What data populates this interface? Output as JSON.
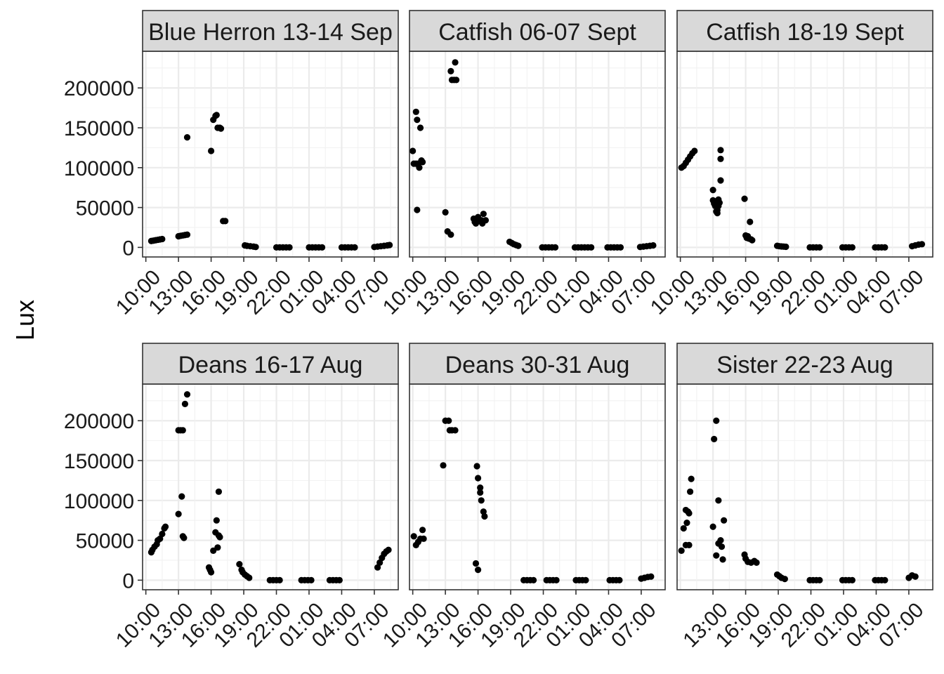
{
  "chart_data": {
    "type": "scatter",
    "ylabel": "Lux",
    "ylim": [
      -12000,
      246000
    ],
    "y_ticks": [
      0,
      50000,
      100000,
      150000,
      200000
    ],
    "y_tick_labels": [
      "0",
      "50000",
      "100000",
      "150000",
      "200000"
    ],
    "x_unit": "hours since 10:00 (day 1)",
    "xlim": [
      -0.3,
      23.2
    ],
    "x_ticks": [
      0,
      3,
      6,
      9,
      12,
      15,
      18,
      21
    ],
    "x_tick_labels": [
      "10:00",
      "13:00",
      "16:00",
      "19:00",
      "22:00",
      "01:00",
      "04:00",
      "07:00"
    ],
    "grid": true,
    "point_color": "#000000",
    "strip_color": "#d9d9d9",
    "panels": [
      {
        "title": "Blue Herron 13-14 Sep",
        "hidden_ticks": [],
        "points": [
          [
            0.5,
            8000
          ],
          [
            0.7,
            8500
          ],
          [
            0.9,
            9000
          ],
          [
            1.1,
            9500
          ],
          [
            1.3,
            10000
          ],
          [
            1.5,
            10500
          ],
          [
            3.0,
            14000
          ],
          [
            3.2,
            14500
          ],
          [
            3.4,
            15000
          ],
          [
            3.6,
            15500
          ],
          [
            3.8,
            16000
          ],
          [
            3.8,
            138000
          ],
          [
            6.0,
            121000
          ],
          [
            6.2,
            160000
          ],
          [
            6.4,
            165000
          ],
          [
            6.5,
            166000
          ],
          [
            6.6,
            150000
          ],
          [
            6.8,
            150000
          ],
          [
            6.9,
            149000
          ],
          [
            7.1,
            33000
          ],
          [
            7.3,
            33000
          ],
          [
            9.1,
            2500
          ],
          [
            9.3,
            2000
          ],
          [
            9.6,
            1500
          ],
          [
            9.9,
            1000
          ],
          [
            10.1,
            500
          ],
          [
            12.0,
            0
          ],
          [
            12.3,
            0
          ],
          [
            12.6,
            0
          ],
          [
            12.9,
            0
          ],
          [
            13.2,
            0
          ],
          [
            15.0,
            0
          ],
          [
            15.3,
            0
          ],
          [
            15.6,
            0
          ],
          [
            15.9,
            0
          ],
          [
            16.2,
            0
          ],
          [
            18.0,
            0
          ],
          [
            18.3,
            0
          ],
          [
            18.6,
            0
          ],
          [
            18.9,
            0
          ],
          [
            19.2,
            0
          ],
          [
            21.0,
            500
          ],
          [
            21.3,
            1000
          ],
          [
            21.6,
            1500
          ],
          [
            21.9,
            2000
          ],
          [
            22.2,
            2500
          ],
          [
            22.4,
            3000
          ]
        ]
      },
      {
        "title": "Catfish 06-07 Sept",
        "hidden_ticks": [],
        "points": [
          [
            0,
            121000
          ],
          [
            0.1,
            105000
          ],
          [
            0.3,
            105000
          ],
          [
            0.3,
            170000
          ],
          [
            0.4,
            160000
          ],
          [
            0.4,
            47000
          ],
          [
            0.5,
            105000
          ],
          [
            0.6,
            100000
          ],
          [
            0.7,
            150000
          ],
          [
            0.8,
            109000
          ],
          [
            0.9,
            107000
          ],
          [
            3.0,
            44000
          ],
          [
            3.2,
            20000
          ],
          [
            3.5,
            16000
          ],
          [
            3.5,
            221000
          ],
          [
            3.6,
            210000
          ],
          [
            3.8,
            210000
          ],
          [
            3.9,
            232000
          ],
          [
            4.0,
            210000
          ],
          [
            5.6,
            36000
          ],
          [
            5.7,
            32000
          ],
          [
            5.8,
            30000
          ],
          [
            6.0,
            38000
          ],
          [
            6.1,
            33000
          ],
          [
            6.3,
            34000
          ],
          [
            6.5,
            42000
          ],
          [
            6.7,
            34000
          ],
          [
            6.4,
            30000
          ],
          [
            8.9,
            7000
          ],
          [
            9.1,
            5500
          ],
          [
            9.3,
            4000
          ],
          [
            9.5,
            3000
          ],
          [
            9.7,
            2000
          ],
          [
            11.9,
            0
          ],
          [
            12.2,
            0
          ],
          [
            12.5,
            0
          ],
          [
            12.8,
            0
          ],
          [
            13.1,
            0
          ],
          [
            14.9,
            0
          ],
          [
            15.2,
            0
          ],
          [
            15.5,
            0
          ],
          [
            15.8,
            0
          ],
          [
            16.1,
            0
          ],
          [
            16.4,
            0
          ],
          [
            17.9,
            0
          ],
          [
            18.2,
            0
          ],
          [
            18.5,
            0
          ],
          [
            18.8,
            0
          ],
          [
            19.1,
            0
          ],
          [
            20.9,
            500
          ],
          [
            21.2,
            1000
          ],
          [
            21.5,
            1500
          ],
          [
            21.8,
            2000
          ],
          [
            22.1,
            2500
          ]
        ]
      },
      {
        "title": "Catfish 18-19 Sept",
        "hidden_ticks": [],
        "points": [
          [
            0.1,
            100000
          ],
          [
            0.3,
            102000
          ],
          [
            0.5,
            106000
          ],
          [
            0.7,
            110000
          ],
          [
            0.9,
            114000
          ],
          [
            1.1,
            118000
          ],
          [
            1.3,
            121000
          ],
          [
            3.0,
            72000
          ],
          [
            3.0,
            59000
          ],
          [
            3.1,
            55000
          ],
          [
            3.2,
            52000
          ],
          [
            3.3,
            45000
          ],
          [
            3.4,
            43000
          ],
          [
            3.4,
            47000
          ],
          [
            3.5,
            52000
          ],
          [
            3.5,
            60000
          ],
          [
            3.6,
            56000
          ],
          [
            3.7,
            122000
          ],
          [
            3.7,
            111000
          ],
          [
            3.7,
            84000
          ],
          [
            5.9,
            61000
          ],
          [
            6.0,
            15000
          ],
          [
            6.1,
            12000
          ],
          [
            6.2,
            14000
          ],
          [
            6.3,
            11000
          ],
          [
            6.5,
            10000
          ],
          [
            6.4,
            32000
          ],
          [
            6.6,
            9000
          ],
          [
            8.9,
            2000
          ],
          [
            9.1,
            1500
          ],
          [
            9.3,
            1200
          ],
          [
            9.5,
            1000
          ],
          [
            9.7,
            800
          ],
          [
            11.9,
            0
          ],
          [
            12.2,
            0
          ],
          [
            12.5,
            0
          ],
          [
            12.8,
            0
          ],
          [
            14.9,
            0
          ],
          [
            15.2,
            0
          ],
          [
            15.5,
            0
          ],
          [
            15.8,
            0
          ],
          [
            17.9,
            0
          ],
          [
            18.2,
            0
          ],
          [
            18.5,
            0
          ],
          [
            18.8,
            0
          ],
          [
            21.3,
            1500
          ],
          [
            21.6,
            2500
          ],
          [
            21.9,
            3500
          ],
          [
            22.2,
            4000
          ]
        ]
      },
      {
        "title": "Deans 16-17 Aug",
        "hidden_ticks": [],
        "points": [
          [
            0.5,
            35000
          ],
          [
            0.6,
            38000
          ],
          [
            0.8,
            42000
          ],
          [
            1.0,
            45000
          ],
          [
            1.1,
            50000
          ],
          [
            1.3,
            52000
          ],
          [
            1.5,
            58000
          ],
          [
            1.7,
            65000
          ],
          [
            1.8,
            67000
          ],
          [
            3.0,
            83000
          ],
          [
            3.0,
            188000
          ],
          [
            3.2,
            188000
          ],
          [
            3.4,
            188000
          ],
          [
            3.3,
            105000
          ],
          [
            3.4,
            55000
          ],
          [
            3.5,
            53000
          ],
          [
            3.6,
            221000
          ],
          [
            3.8,
            233000
          ],
          [
            5.8,
            16000
          ],
          [
            5.9,
            13000
          ],
          [
            6.0,
            10000
          ],
          [
            6.2,
            37000
          ],
          [
            6.4,
            60000
          ],
          [
            6.5,
            75000
          ],
          [
            6.6,
            41000
          ],
          [
            6.7,
            56000
          ],
          [
            6.8,
            54000
          ],
          [
            6.7,
            111000
          ],
          [
            8.6,
            20000
          ],
          [
            8.8,
            13000
          ],
          [
            8.9,
            10000
          ],
          [
            9.1,
            7000
          ],
          [
            9.3,
            5000
          ],
          [
            9.5,
            3000
          ],
          [
            11.4,
            0
          ],
          [
            11.7,
            0
          ],
          [
            12.0,
            0
          ],
          [
            12.3,
            0
          ],
          [
            14.3,
            0
          ],
          [
            14.6,
            0
          ],
          [
            14.9,
            0
          ],
          [
            15.2,
            0
          ],
          [
            16.9,
            0
          ],
          [
            17.2,
            0
          ],
          [
            17.5,
            0
          ],
          [
            17.8,
            0
          ],
          [
            21.3,
            16000
          ],
          [
            21.5,
            22000
          ],
          [
            21.7,
            28000
          ],
          [
            21.9,
            33000
          ],
          [
            22.1,
            36000
          ],
          [
            22.3,
            38000
          ]
        ]
      },
      {
        "title": "Deans 30-31 Aug",
        "hidden_ticks": [],
        "points": [
          [
            0.1,
            55000
          ],
          [
            0.3,
            44000
          ],
          [
            0.5,
            48000
          ],
          [
            0.7,
            52000
          ],
          [
            0.9,
            63000
          ],
          [
            1.0,
            52000
          ],
          [
            2.8,
            144000
          ],
          [
            3.0,
            200000
          ],
          [
            3.3,
            200000
          ],
          [
            3.4,
            188000
          ],
          [
            3.6,
            188000
          ],
          [
            3.9,
            188000
          ],
          [
            5.8,
            21000
          ],
          [
            6.0,
            13000
          ],
          [
            5.9,
            143000
          ],
          [
            6.0,
            128000
          ],
          [
            6.2,
            116000
          ],
          [
            6.2,
            110000
          ],
          [
            6.3,
            100000
          ],
          [
            6.5,
            86000
          ],
          [
            6.6,
            80000
          ],
          [
            10.2,
            0
          ],
          [
            10.5,
            0
          ],
          [
            10.8,
            0
          ],
          [
            11.1,
            0
          ],
          [
            12.3,
            0
          ],
          [
            12.6,
            0
          ],
          [
            12.9,
            0
          ],
          [
            13.2,
            0
          ],
          [
            15.0,
            0
          ],
          [
            15.3,
            0
          ],
          [
            15.6,
            0
          ],
          [
            15.9,
            0
          ],
          [
            18.1,
            0
          ],
          [
            18.4,
            0
          ],
          [
            18.7,
            0
          ],
          [
            19.0,
            0
          ],
          [
            21.0,
            2000
          ],
          [
            21.3,
            3000
          ],
          [
            21.6,
            4000
          ],
          [
            21.9,
            4500
          ]
        ]
      },
      {
        "title": "Sister 22-23 Aug",
        "hidden_ticks": [
          0
        ],
        "points": [
          [
            0.1,
            37000
          ],
          [
            0.3,
            65000
          ],
          [
            0.5,
            44000
          ],
          [
            0.6,
            72000
          ],
          [
            0.5,
            88000
          ],
          [
            0.7,
            86000
          ],
          [
            0.8,
            44000
          ],
          [
            0.9,
            111000
          ],
          [
            1.0,
            127000
          ],
          [
            0.8,
            84000
          ],
          [
            3.0,
            67000
          ],
          [
            3.1,
            177000
          ],
          [
            3.3,
            200000
          ],
          [
            3.3,
            31000
          ],
          [
            3.5,
            46000
          ],
          [
            3.5,
            100000
          ],
          [
            3.7,
            50000
          ],
          [
            3.8,
            42000
          ],
          [
            3.9,
            26000
          ],
          [
            4.0,
            75000
          ],
          [
            5.9,
            32000
          ],
          [
            6.0,
            27000
          ],
          [
            6.2,
            23000
          ],
          [
            6.5,
            22000
          ],
          [
            6.8,
            24000
          ],
          [
            7.0,
            22000
          ],
          [
            8.9,
            7000
          ],
          [
            9.1,
            5000
          ],
          [
            9.3,
            3000
          ],
          [
            9.6,
            1500
          ],
          [
            11.9,
            0
          ],
          [
            12.2,
            0
          ],
          [
            12.5,
            0
          ],
          [
            12.8,
            0
          ],
          [
            14.9,
            0
          ],
          [
            15.2,
            0
          ],
          [
            15.5,
            0
          ],
          [
            15.8,
            0
          ],
          [
            17.9,
            0
          ],
          [
            18.2,
            0
          ],
          [
            18.5,
            0
          ],
          [
            18.8,
            0
          ],
          [
            21.0,
            3000
          ],
          [
            21.3,
            6000
          ],
          [
            21.6,
            4500
          ]
        ]
      }
    ]
  }
}
